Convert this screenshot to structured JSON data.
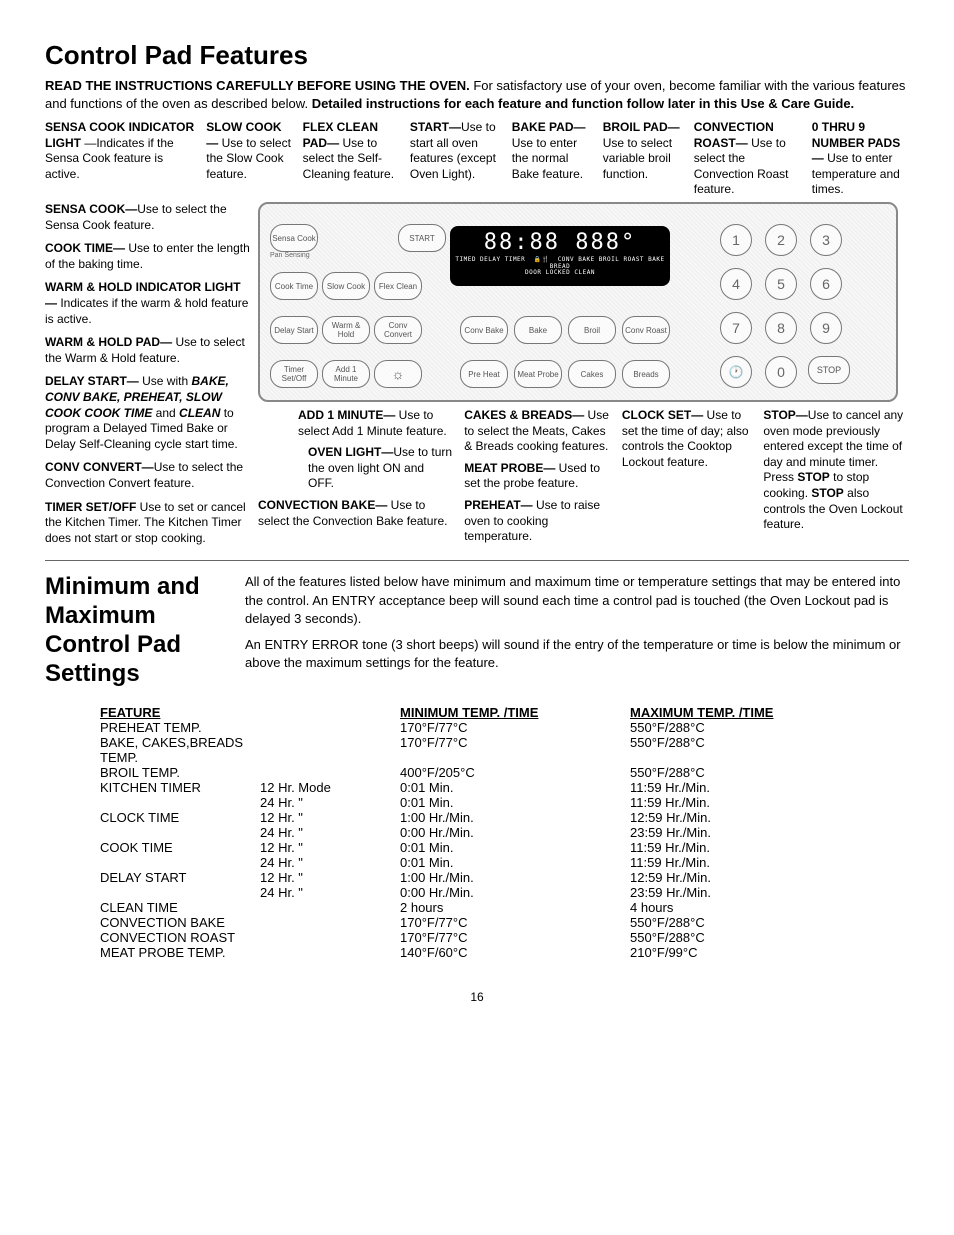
{
  "page_number": "16",
  "title1": "Control Pad Features",
  "intro_bold1": "READ THE INSTRUCTIONS CAREFULLY BEFORE USING THE OVEN.",
  "intro_text1": "  For satisfactory use of your oven, become familiar with the various features and functions of the oven as described below. ",
  "intro_bold2": "Detailed instructions for each feature and function follow later in this Use & Care Guide.",
  "top": {
    "sensa_ind_b": "SENSA COOK INDICATOR LIGHT",
    "sensa_ind_t": " —Indicates if the Sensa Cook feature is active.",
    "slow_b": "SLOW COOK—",
    "slow_t": " Use to select the Slow Cook feature.",
    "flex_b": "FLEX CLEAN PAD—",
    "flex_t": " Use to select the Self-Cleaning feature.",
    "start_b": "START—",
    "start_t": "Use to start all oven features (except Oven Light).",
    "bake_b": "BAKE PAD—",
    "bake_t": "Use to enter the normal Bake feature.",
    "broil_b": "BROIL PAD—",
    "broil_t": " Use to select variable broil function.",
    "conv_b": "CONVECTION ROAST—",
    "conv_t": " Use to select the Convection Roast feature.",
    "num_b": "0 THRU 9 NUMBER PADS —",
    "num_t": " Use to enter temperature and times."
  },
  "left": {
    "sensa_b": "SENSA COOK—",
    "sensa_t": "Use to select the Sensa Cook feature.",
    "cook_b": "COOK TIME—",
    "cook_t": " Use to enter the length of the baking time.",
    "warmhold_ind_b": "WARM & HOLD INDICATOR LIGHT —",
    "warmhold_ind_t": " Indicates if the warm & hold feature is active.",
    "warmhold_pad_b": "WARM & HOLD PAD—",
    "warmhold_pad_t": " Use to select the Warm & Hold feature.",
    "delay_b": "DELAY START—",
    "delay_t1": " Use with ",
    "delay_i": "BAKE, CONV BAKE, PREHEAT, SLOW COOK COOK TIME",
    "delay_t2": " and ",
    "delay_i2": "CLEAN",
    "delay_t3": " to program a Delayed Timed Bake or Delay Self-Cleaning cycle start time.",
    "convc_b": "CONV CONVERT—",
    "convc_t": "Use to select the Convection Convert feature.",
    "timer_b": "TIMER SET/OFF",
    "timer_t": " Use to set or cancel the Kitchen Timer. The Kitchen Timer does not start or stop cooking."
  },
  "panel": {
    "display_main": "88:88 888°",
    "display_sub1": "TIMED DELAY TIMER",
    "display_sub2": "DOOR LOCKED CLEAN",
    "display_sub3": "CONV BAKE BROIL ROAST BAKE BREAD",
    "pads": {
      "sensa": "Sensa Cook",
      "pansensing": "Pan Sensing",
      "cooktime": "Cook Time",
      "slowcook": "Slow Cook",
      "flexclean": "Flex Clean",
      "start": "START",
      "delaystart": "Delay Start",
      "warmhold": "Warm & Hold",
      "convconvert": "Conv Convert",
      "timerset": "Timer Set/Off",
      "add1": "Add 1 Minute",
      "light": "☼",
      "convbake": "Conv Bake",
      "bake": "Bake",
      "broil": "Broil",
      "convroast": "Conv Roast",
      "preheat": "Pre Heat",
      "meatprobe": "Meat Probe",
      "cakes": "Cakes",
      "breads": "Breads",
      "clock": "🕐",
      "stop": "STOP"
    }
  },
  "bottom": {
    "add1_b": "ADD 1 MINUTE—",
    "add1_t": " Use to select Add 1 Minute feature.",
    "ovenlight_b": "OVEN LIGHT—",
    "ovenlight_t": "Use to turn the oven light ON and OFF.",
    "convbake_b": "CONVECTION BAKE—",
    "convbake_t": " Use to select the Convection Bake feature.",
    "preheat_b": "PREHEAT—",
    "preheat_t": " Use to raise oven to cooking temperature.",
    "meat_b": "MEAT PROBE—",
    "meat_t": " Used to set the probe feature.",
    "cakes_b": "CAKES & BREADS—",
    "cakes_t": " Use to select the Meats, Cakes & Breads cooking features.",
    "clock_b": "CLOCK SET—",
    "clock_t": " Use to set the time of day; also controls the Cooktop Lockout feature.",
    "stop_b": "STOP—",
    "stop_t": "Use to cancel any oven mode previously entered except the time of day and minute timer. Press ",
    "stop_b2": "STOP",
    "stop_t2": " to stop cooking. ",
    "stop_b3": "STOP",
    "stop_t3": " also controls the Oven Lockout feature."
  },
  "title2": "Minimum and Maximum Control Pad Settings",
  "desc2a": "All of the features listed below have minimum and maximum time or temperature settings that may be entered into the control. An ENTRY acceptance beep will sound each time a control pad is touched (the Oven Lockout pad is delayed 3 seconds).",
  "desc2b": "An ENTRY ERROR tone (3 short beeps) will sound if the entry of the temperature or time is below the minimum or above the maximum settings for the feature.",
  "table": {
    "h1": "FEATURE",
    "h2": "",
    "h3": "MINIMUM TEMP. /TIME",
    "h4": "MAXIMUM TEMP. /TIME",
    "rows": [
      {
        "c1": "PREHEAT TEMP.",
        "c2": "",
        "c3": "170°F/77°C",
        "c4": "550°F/288°C"
      },
      {
        "c1": "BAKE, CAKES,BREADS TEMP.",
        "c2": "",
        "c3": "170°F/77°C",
        "c4": "550°F/288°C"
      },
      {
        "c1": "BROIL TEMP.",
        "c2": "",
        "c3": "400°F/205°C",
        "c4": "550°F/288°C"
      },
      {
        "c1": "KITCHEN TIMER",
        "c2": "12 Hr. Mode",
        "c3": "0:01 Min.",
        "c4": "11:59 Hr./Min."
      },
      {
        "c1": "",
        "c2": "24 Hr.    \"",
        "c3": "0:01 Min.",
        "c4": "11:59 Hr./Min."
      },
      {
        "c1": "CLOCK TIME",
        "c2": "12 Hr.    \"",
        "c3": "1:00 Hr./Min.",
        "c4": "12:59 Hr./Min."
      },
      {
        "c1": "",
        "c2": "24 Hr.    \"",
        "c3": "0:00 Hr./Min.",
        "c4": "23:59 Hr./Min."
      },
      {
        "c1": "COOK TIME",
        "c2": "12 Hr.    \"",
        "c3": "0:01 Min.",
        "c4": "11:59 Hr./Min."
      },
      {
        "c1": "",
        "c2": "24 Hr.    \"",
        "c3": "0:01 Min.",
        "c4": "11:59 Hr./Min."
      },
      {
        "c1": "DELAY START",
        "c2": "12 Hr.    \"",
        "c3": "1:00 Hr./Min.",
        "c4": "12:59 Hr./Min."
      },
      {
        "c1": "",
        "c2": "24 Hr.    \"",
        "c3": "0:00 Hr./Min.",
        "c4": "23:59 Hr./Min."
      },
      {
        "c1": "CLEAN TIME",
        "c2": "",
        "c3": "2 hours",
        "c4": "4 hours"
      },
      {
        "c1": "CONVECTION BAKE",
        "c2": "",
        "c3": "170°F/77°C",
        "c4": "550°F/288°C"
      },
      {
        "c1": "CONVECTION ROAST",
        "c2": "",
        "c3": "170°F/77°C",
        "c4": "550°F/288°C"
      },
      {
        "c1": "MEAT PROBE TEMP.",
        "c2": "",
        "c3": "140°F/60°C",
        "c4": "210°F/99°C"
      }
    ]
  }
}
